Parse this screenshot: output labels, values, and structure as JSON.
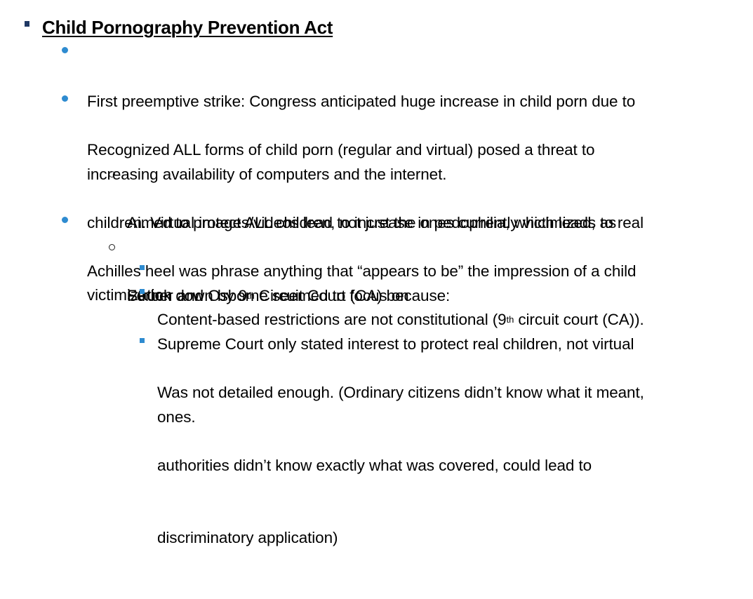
{
  "heading": "Child Pornography Prevention Act",
  "items": [
    {
      "lines": [
        "First preemptive strike: Congress anticipated huge increase in child porn due to",
        "increasing availability of computers and the internet."
      ]
    },
    {
      "lines": [
        "Recognized ALL forms of child porn (regular and virtual) posed a threat to",
        "children. Virtual images/videos lead to increase in pedophilia, which leads to real",
        "victimization"
      ],
      "sub": [
        {
          "lines": [
            "Aimed to protect ALL children, not just the ones currently victimized, as",
            "Ferber and Osborne seemed to focus on"
          ]
        }
      ]
    },
    {
      "lines": [
        "Achilles heel was phrase anything that “appears to be” the impression of a child"
      ],
      "sub": [
        {
          "before": "Struck down by 9",
          "sup": "th",
          "after": " Circuit Court (CA) because:",
          "sub": [
            {
              "before": "Content-based restrictions are not constitutional (9",
              "sup": "th",
              "after": " circuit court (CA))."
            },
            {
              "lines": [
                "Supreme Court only stated interest to protect real children, not virtual",
                "ones."
              ]
            },
            {
              "lines": [
                "Was not detailed enough. (Ordinary citizens didn’t know what it meant,",
                "authorities didn’t know exactly what was covered, could lead to",
                "discriminatory application)"
              ]
            }
          ]
        }
      ]
    }
  ]
}
